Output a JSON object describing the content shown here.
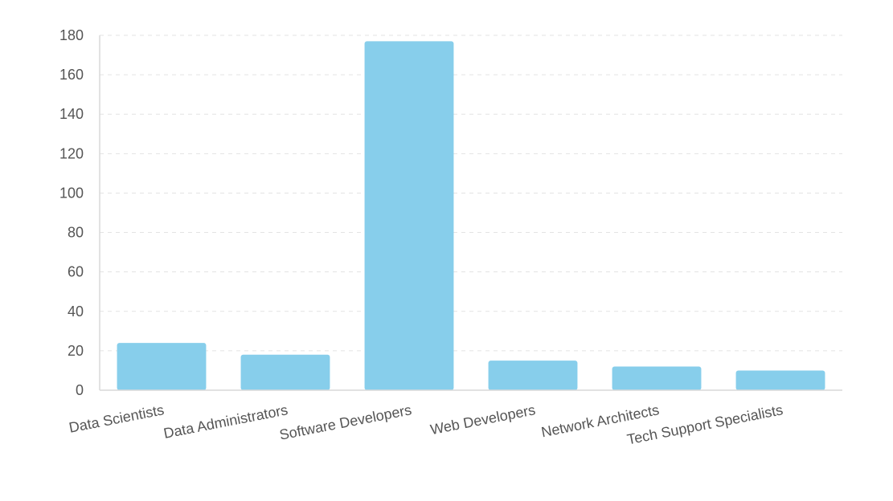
{
  "chart_data": {
    "type": "bar",
    "categories": [
      "Data Scientists",
      "Data Administrators",
      "Software Developers",
      "Web Developers",
      "Network Architects",
      "Tech Support Specialists"
    ],
    "values": [
      24,
      18,
      177,
      15,
      12,
      10
    ],
    "yticks": [
      0,
      20,
      40,
      60,
      80,
      100,
      120,
      140,
      160,
      180
    ],
    "ylim": [
      0,
      180
    ],
    "grid": true,
    "legend": "none",
    "colors": {
      "bar": "#87ceeb",
      "grid": "#e3e3e3",
      "axis": "#d9d9d9",
      "label": "#555555"
    }
  }
}
